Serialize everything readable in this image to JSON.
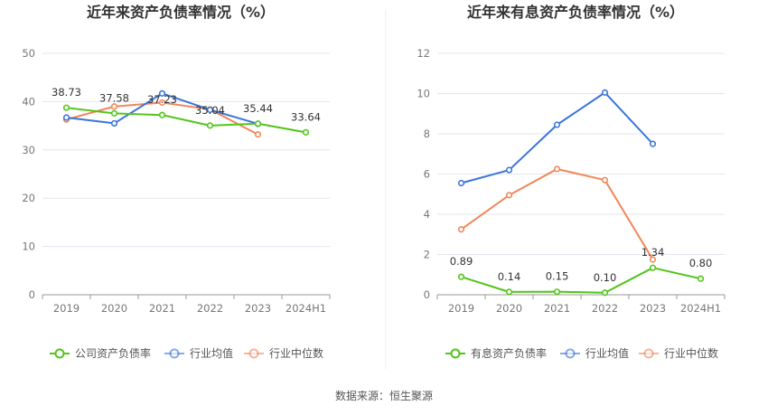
{
  "chart_data": [
    {
      "type": "line",
      "title": "近年来资产负债率情况（%）",
      "categories": [
        "2019",
        "2020",
        "2021",
        "2022",
        "2023",
        "2024H1"
      ],
      "ylim": [
        0,
        50
      ],
      "yticks": [
        "0",
        "10",
        "20",
        "30",
        "40",
        "50"
      ],
      "series": [
        {
          "name": "公司资产负债率",
          "color": "#52c41a",
          "values": [
            38.73,
            37.58,
            37.23,
            35.04,
            35.44,
            33.64
          ],
          "labels": [
            "38.73",
            "37.58",
            "37.23",
            "35.04",
            "35.44",
            "33.64"
          ]
        },
        {
          "name": "行业均值",
          "color": "#3a75d9",
          "values": [
            36.7,
            35.5,
            41.7,
            38.3,
            35.4,
            null
          ]
        },
        {
          "name": "行业中位数",
          "color": "#f0875a",
          "values": [
            36.3,
            39.0,
            39.8,
            38.4,
            33.2,
            null
          ]
        }
      ]
    },
    {
      "type": "line",
      "title": "近年来有息资产负债率情况（%）",
      "categories": [
        "2019",
        "2020",
        "2021",
        "2022",
        "2023",
        "2024H1"
      ],
      "ylim": [
        0,
        12
      ],
      "yticks": [
        "0",
        "2",
        "4",
        "6",
        "8",
        "10",
        "12"
      ],
      "series": [
        {
          "name": "有息资产负债率",
          "color": "#52c41a",
          "values": [
            0.89,
            0.14,
            0.15,
            0.1,
            1.34,
            0.8
          ],
          "labels": [
            "0.89",
            "0.14",
            "0.15",
            "0.10",
            "1.34",
            "0.80"
          ]
        },
        {
          "name": "行业均值",
          "color": "#3a75d9",
          "values": [
            5.55,
            6.2,
            8.45,
            10.05,
            7.5,
            null
          ]
        },
        {
          "name": "行业中位数",
          "color": "#f0875a",
          "values": [
            3.25,
            4.95,
            6.25,
            5.7,
            1.75,
            null
          ]
        }
      ]
    }
  ],
  "footer": {
    "source": "数据来源：恒生聚源"
  }
}
